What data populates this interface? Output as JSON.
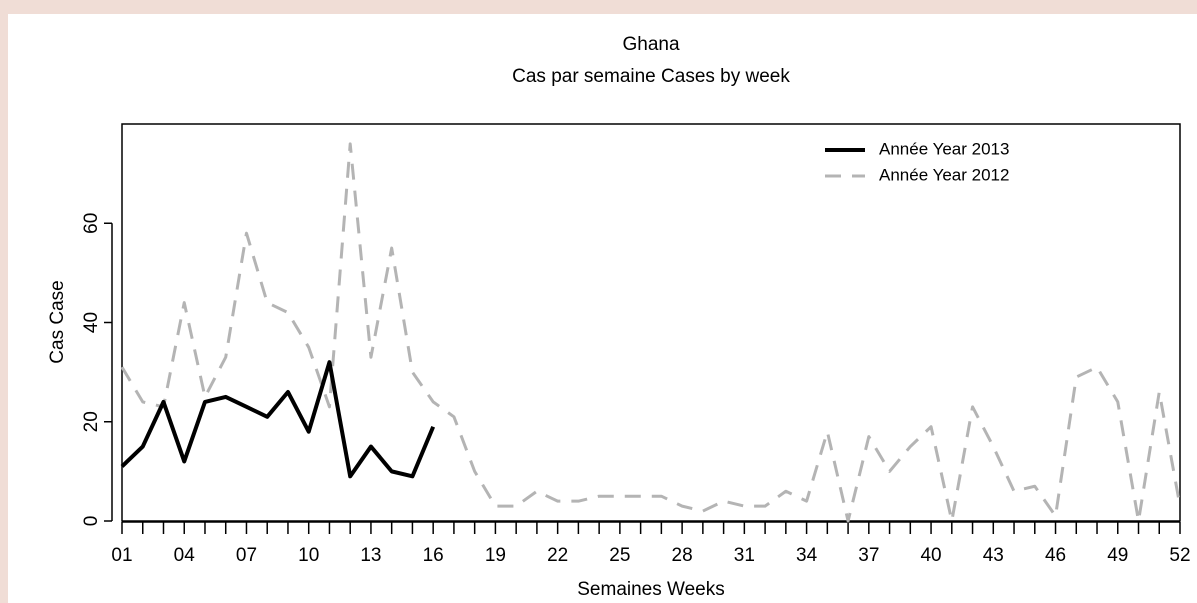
{
  "chart_data": {
    "type": "line",
    "title": "Ghana",
    "subtitle": "Cas par semaine Cases by week",
    "x_label": "Semaines Weeks",
    "y_label": "Cas Case",
    "categories": [
      "01",
      null,
      null,
      "04",
      null,
      null,
      "07",
      null,
      null,
      "10",
      null,
      null,
      "13",
      null,
      null,
      "16",
      null,
      null,
      "19",
      null,
      null,
      "22",
      null,
      null,
      "25",
      null,
      null,
      "28",
      null,
      null,
      "31",
      null,
      null,
      "34",
      null,
      null,
      "37",
      null,
      null,
      "40",
      null,
      null,
      "43",
      null,
      null,
      "46",
      null,
      null,
      "49",
      null,
      null,
      "52"
    ],
    "ylim": [
      0,
      80
    ],
    "yticks": [
      0,
      20,
      40,
      60
    ],
    "legend": "top-right",
    "series": [
      {
        "name": "Année Year 2013",
        "color": "#000000",
        "dashed": false,
        "values": [
          11,
          15,
          24,
          12,
          24,
          25,
          23,
          21,
          26,
          18,
          32,
          9,
          15,
          10,
          9,
          19,
          null,
          null,
          null,
          null,
          null,
          null,
          null,
          null,
          null,
          null,
          null,
          null,
          null,
          null,
          null,
          null,
          null,
          null,
          null,
          null,
          null,
          null,
          null,
          null,
          null,
          null,
          null,
          null,
          null,
          null,
          null,
          null,
          null,
          null,
          null,
          null
        ]
      },
      {
        "name": "Année Year 2012",
        "color": "#b4b4b4",
        "dashed": true,
        "values": [
          31,
          24,
          23,
          44,
          25,
          33,
          58,
          44,
          42,
          35,
          23,
          76,
          33,
          55,
          30,
          24,
          21,
          10,
          3,
          3,
          6,
          4,
          4,
          5,
          5,
          5,
          5,
          3,
          2,
          4,
          3,
          3,
          6,
          4,
          18,
          0,
          17,
          10,
          15,
          19,
          0,
          23,
          15,
          6,
          7,
          1,
          29,
          31,
          24,
          0,
          26,
          3
        ]
      }
    ]
  }
}
